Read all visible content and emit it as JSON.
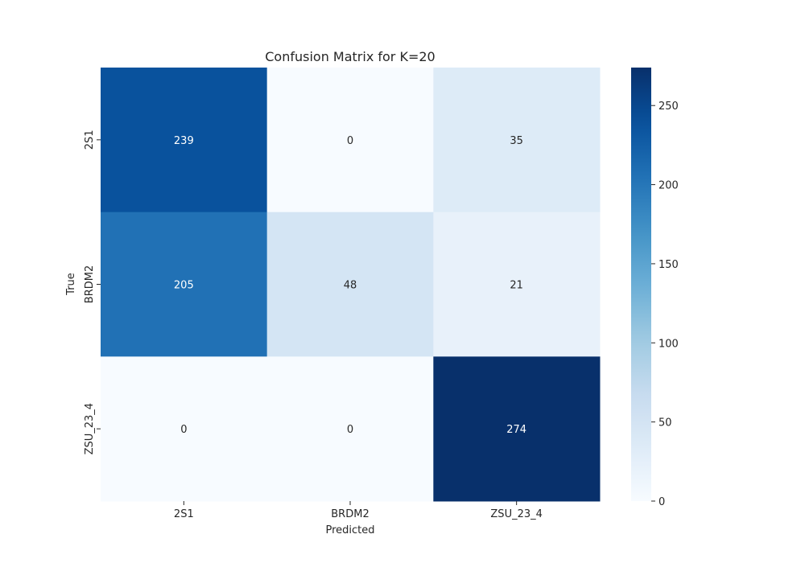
{
  "chart_data": {
    "type": "heatmap",
    "title": "Confusion Matrix for K=20",
    "xlabel": "Predicted",
    "ylabel": "True",
    "x_categories": [
      "2S1",
      "BRDM2",
      "ZSU_23_4"
    ],
    "y_categories": [
      "2S1",
      "BRDM2",
      "ZSU_23_4"
    ],
    "values": [
      [
        239,
        0,
        35
      ],
      [
        205,
        48,
        21
      ],
      [
        0,
        0,
        274
      ]
    ],
    "colormap": "Blues",
    "color_range": [
      0,
      274
    ],
    "colorbar": {
      "ticks": [
        0,
        50,
        100,
        150,
        200,
        250
      ],
      "tick_labels": [
        "0",
        "50",
        "100",
        "150",
        "200",
        "250"
      ]
    },
    "annotations": true,
    "grid": false
  }
}
